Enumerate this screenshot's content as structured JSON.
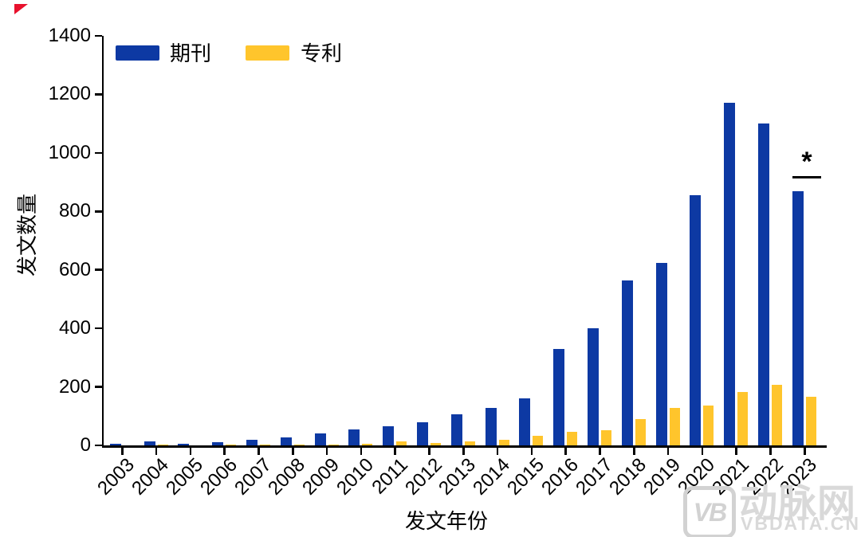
{
  "chart_data": {
    "type": "bar",
    "categories": [
      "2003",
      "2004",
      "2005",
      "2006",
      "2007",
      "2008",
      "2009",
      "2010",
      "2011",
      "2012",
      "2013",
      "2014",
      "2015",
      "2016",
      "2017",
      "2018",
      "2019",
      "2020",
      "2021",
      "2022",
      "2023"
    ],
    "series": [
      {
        "name": "期刊",
        "color": "#0d39a3",
        "values": [
          5,
          13,
          6,
          10,
          20,
          28,
          40,
          55,
          65,
          78,
          105,
          128,
          161,
          330,
          400,
          565,
          625,
          855,
          1170,
          1100,
          870
        ]
      },
      {
        "name": "专利",
        "color": "#ffc52c",
        "values": [
          0,
          1,
          0,
          1,
          1,
          2,
          3,
          6,
          14,
          8,
          13,
          19,
          34,
          45,
          52,
          90,
          128,
          135,
          183,
          208,
          165
        ]
      }
    ],
    "xlabel": "发文年份",
    "ylabel": "发文数量",
    "ylim": [
      0,
      1400
    ],
    "yticks": [
      0,
      200,
      400,
      600,
      800,
      1000,
      1200,
      1400
    ],
    "grid": false,
    "legend_position": "top-left inside plot",
    "annotation": {
      "text": "*",
      "target_category": "2023",
      "target_series": "期刊",
      "style": "asterisk above horizontal line over 2023 journal bar"
    }
  },
  "watermark": {
    "logo_text": "VB",
    "brand": "动脉网",
    "domain": "VBDATA.CN"
  },
  "corner_marker": {
    "color": "#e8112d"
  }
}
